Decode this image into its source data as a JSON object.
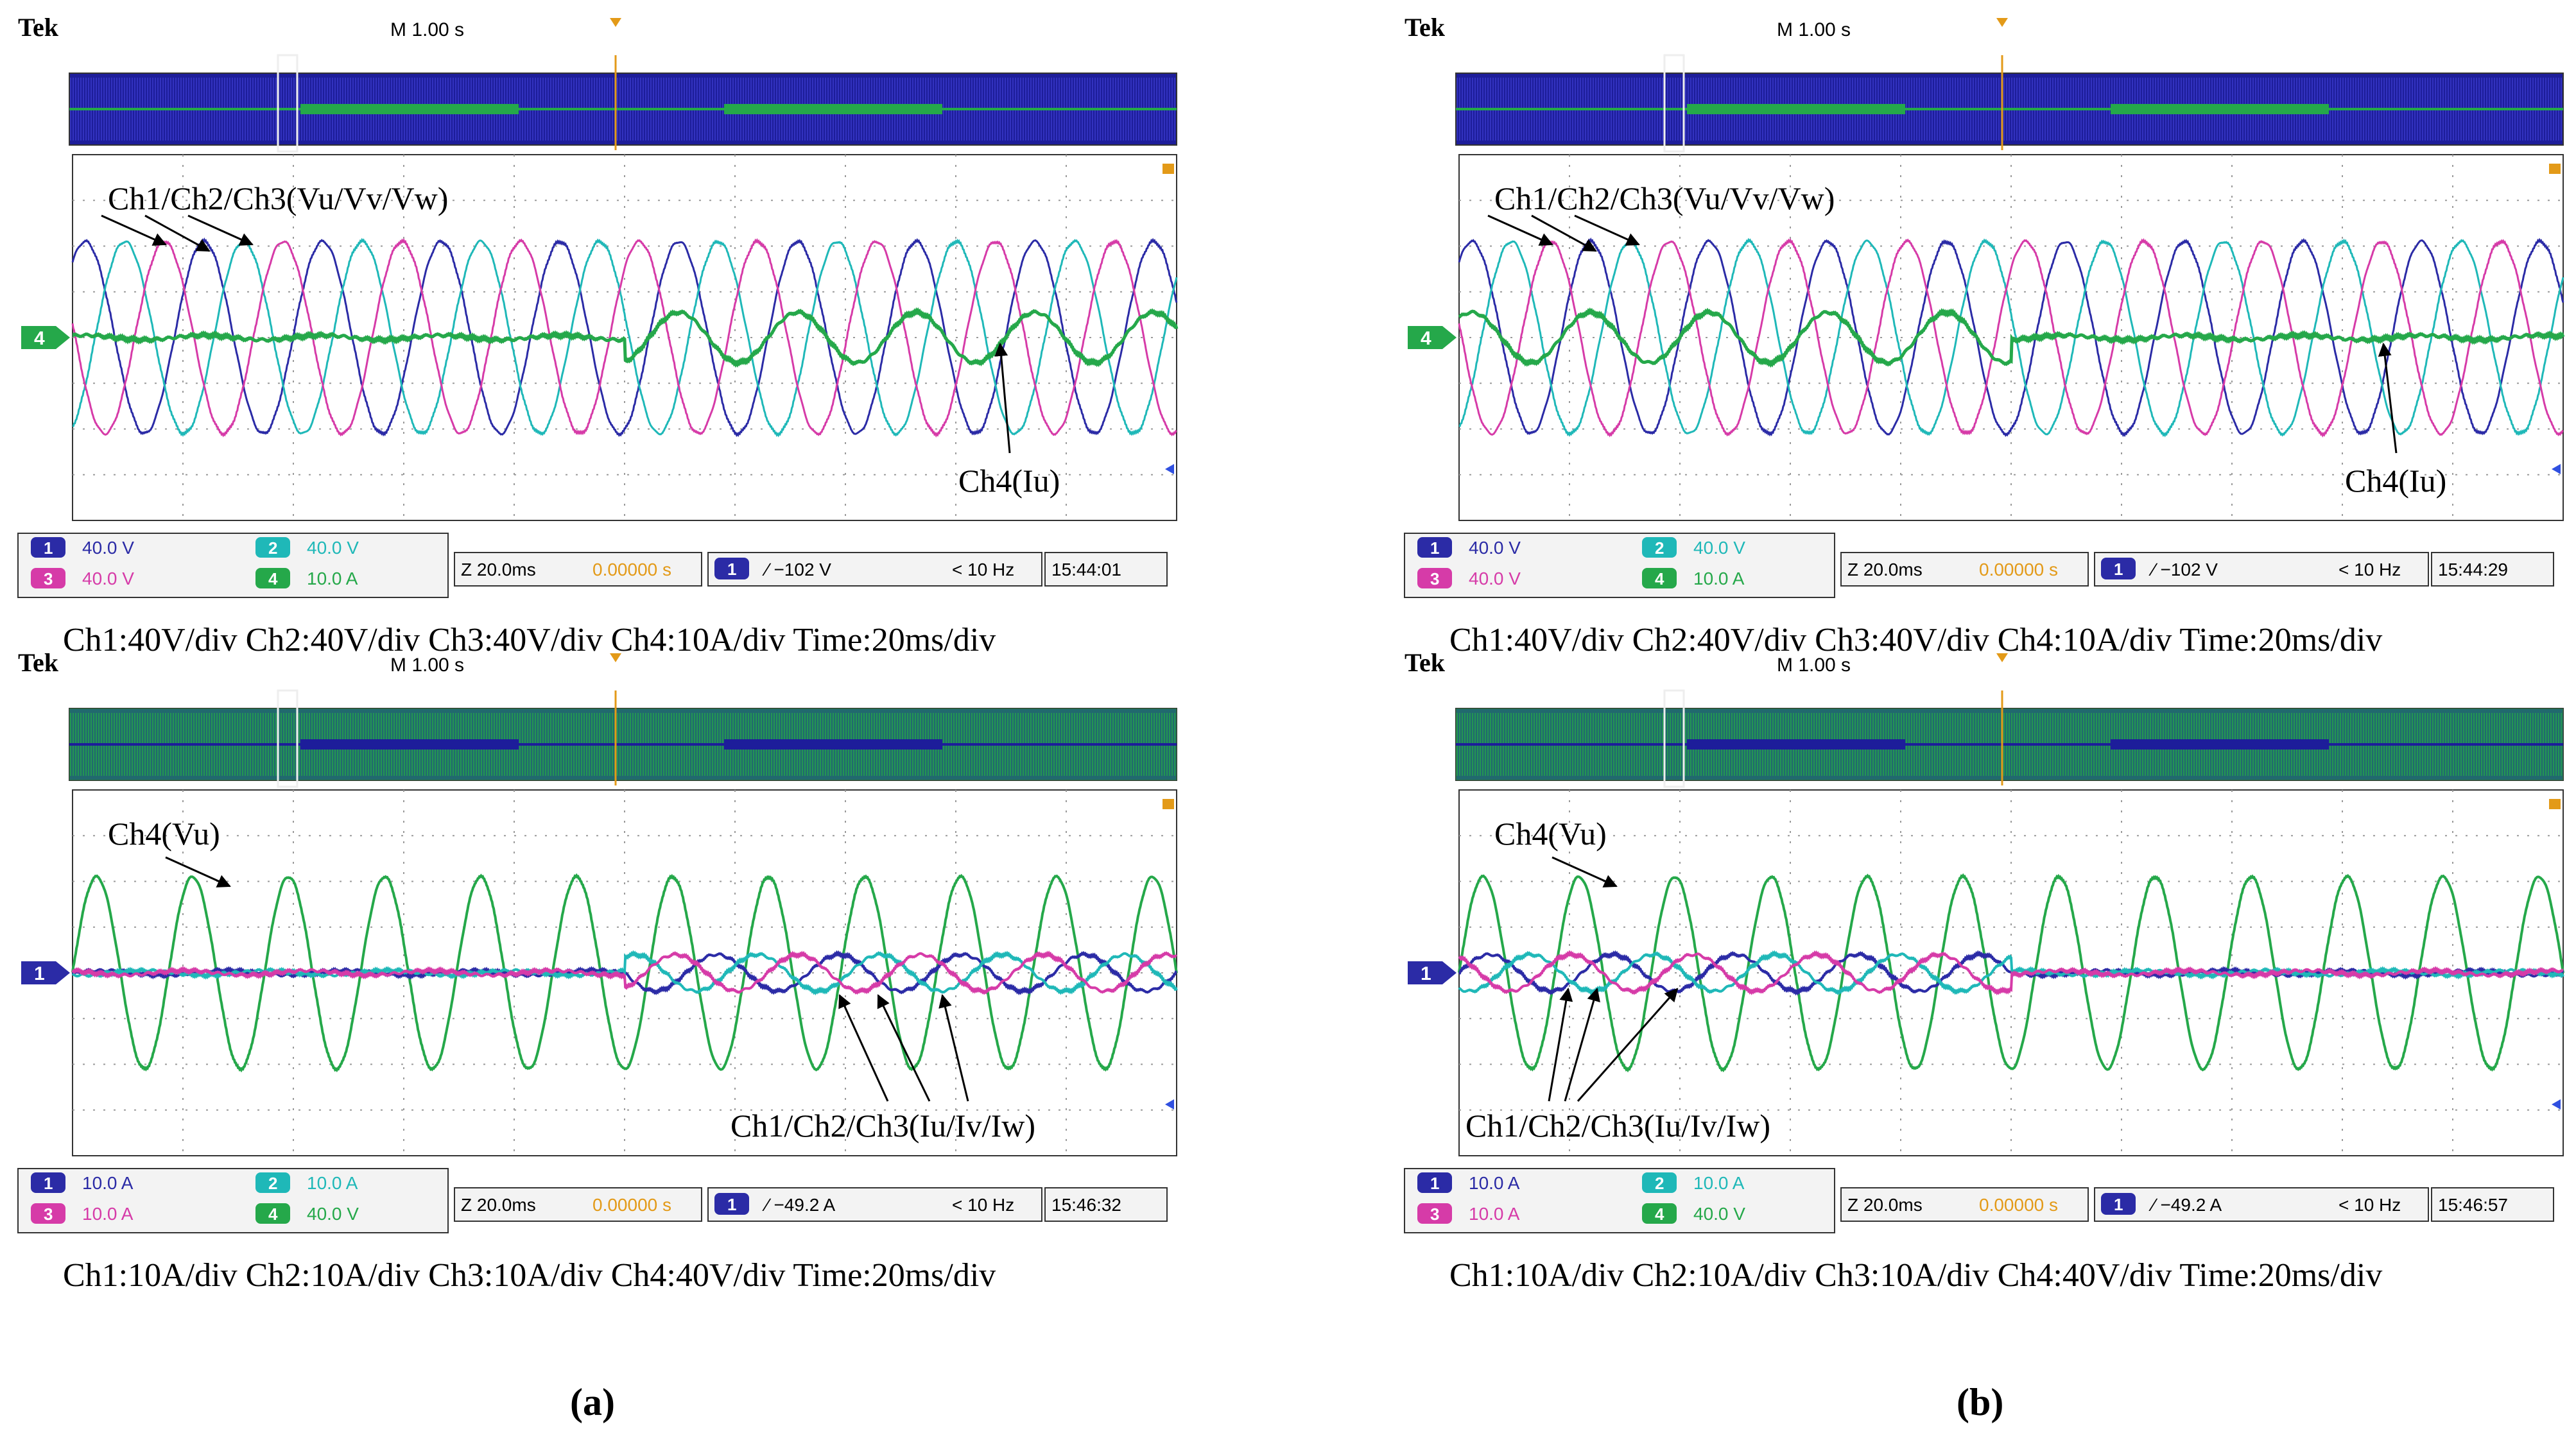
{
  "panels": [
    {
      "label": "(a)",
      "scopes": [
        {
          "brand": "Tek",
          "timebase": "M 1.00 s",
          "zoom": "Z 20.0ms",
          "offset": "0.00000 s",
          "trigger_ch": "1",
          "trigger_level": "∕ −102 V",
          "freq": "< 10 Hz",
          "clock": "15:44:01",
          "marker": "4",
          "channels": [
            {
              "num": "1",
              "scale": "40.0 V"
            },
            {
              "num": "2",
              "scale": "40.0 V"
            },
            {
              "num": "3",
              "scale": "40.0 V"
            },
            {
              "num": "4",
              "scale": "10.0 A"
            }
          ],
          "annotation_top": "Ch1/Ch2/Ch3(Vu/Vv/Vw)",
          "annotation_bottom": "Ch4(Iu)",
          "caption": "Ch1:40V/div  Ch2:40V/div  Ch3:40V/div  Ch4:10A/div  Time:20ms/div"
        },
        {
          "brand": "Tek",
          "timebase": "M 1.00 s",
          "zoom": "Z 20.0ms",
          "offset": "0.00000 s",
          "trigger_ch": "1",
          "trigger_level": "∕ −49.2 A",
          "freq": "< 10 Hz",
          "clock": "15:46:32",
          "marker": "1",
          "channels": [
            {
              "num": "1",
              "scale": "10.0 A"
            },
            {
              "num": "2",
              "scale": "10.0 A"
            },
            {
              "num": "3",
              "scale": "10.0 A"
            },
            {
              "num": "4",
              "scale": "40.0 V"
            }
          ],
          "annotation_top": "Ch4(Vu)",
          "annotation_bottom": "Ch1/Ch2/Ch3(Iu/Iv/Iw)",
          "caption": "Ch1:10A/div  Ch2:10A/div  Ch3:10A/div  Ch4:40V/div  Time:20ms/div"
        }
      ]
    },
    {
      "label": "(b)",
      "scopes": [
        {
          "brand": "Tek",
          "timebase": "M 1.00 s",
          "zoom": "Z 20.0ms",
          "offset": "0.00000 s",
          "trigger_ch": "1",
          "trigger_level": "∕ −102 V",
          "freq": "< 10 Hz",
          "clock": "15:44:29",
          "marker": "4",
          "channels": [
            {
              "num": "1",
              "scale": "40.0 V"
            },
            {
              "num": "2",
              "scale": "40.0 V"
            },
            {
              "num": "3",
              "scale": "40.0 V"
            },
            {
              "num": "4",
              "scale": "10.0 A"
            }
          ],
          "annotation_top": "Ch1/Ch2/Ch3(Vu/Vv/Vw)",
          "annotation_bottom": "Ch4(Iu)",
          "caption": "Ch1:40V/div  Ch2:40V/div  Ch3:40V/div  Ch4:10A/div  Time:20ms/div"
        },
        {
          "brand": "Tek",
          "timebase": "M 1.00 s",
          "zoom": "Z 20.0ms",
          "offset": "0.00000 s",
          "trigger_ch": "1",
          "trigger_level": "∕ −49.2 A",
          "freq": "< 10 Hz",
          "clock": "15:46:57",
          "marker": "1",
          "channels": [
            {
              "num": "1",
              "scale": "10.0 A"
            },
            {
              "num": "2",
              "scale": "10.0 A"
            },
            {
              "num": "3",
              "scale": "10.0 A"
            },
            {
              "num": "4",
              "scale": "40.0 V"
            }
          ],
          "annotation_top": "Ch4(Vu)",
          "annotation_bottom": "Ch1/Ch2/Ch3(Iu/Iv/Iw)",
          "caption": "Ch1:10A/div  Ch2:10A/div  Ch3:10A/div  Ch4:40V/div  Time:20ms/div"
        }
      ]
    }
  ],
  "colors": {
    "ch1": "#2b2ba6",
    "ch2": "#1fb8b8",
    "ch3": "#d63ba8",
    "ch4": "#25a84a",
    "grid": "#9a9a9a",
    "frame": "#333333",
    "offset_text": "#e39a18"
  },
  "chart_data": [
    {
      "type": "line",
      "title": "",
      "xlabel": "",
      "ylabel": "",
      "x_units": "div (20 ms/div)",
      "xlim": [
        0,
        10
      ],
      "ylim": [
        -4,
        4
      ],
      "grid": true,
      "series": [
        {
          "name": "Ch1/Ch2/Ch3(Vu/Vv/Vw)",
          "kind": "three-phase sine",
          "amplitude_div": 2.1,
          "cycles_per_div": 0.93,
          "span": [
            0,
            10
          ]
        },
        {
          "name": "Ch4(Iu)",
          "offset_div": 0,
          "segments": [
            {
              "span": [
                0,
                5
              ],
              "amplitude_div": 0.05
            },
            {
              "span": [
                5,
                10
              ],
              "amplitude_div": 0.55
            }
          ]
        }
      ]
    },
    {
      "type": "line",
      "title": "",
      "xlabel": "",
      "ylabel": "",
      "x_units": "div (20 ms/div)",
      "xlim": [
        0,
        10
      ],
      "ylim": [
        -4,
        4
      ],
      "grid": true,
      "series": [
        {
          "name": "Ch4(Vu)",
          "amplitude_div": 2.1,
          "cycles_per_div": 1.15,
          "span": [
            0,
            10
          ]
        },
        {
          "name": "Ch1/Ch2/Ch3(Iu/Iv/Iw)",
          "kind": "three-phase sine",
          "segments": [
            {
              "span": [
                0,
                5
              ],
              "amplitude_div": 0.05
            },
            {
              "span": [
                5,
                10
              ],
              "amplitude_div": 0.4
            }
          ]
        }
      ]
    },
    {
      "type": "line",
      "title": "",
      "xlabel": "",
      "ylabel": "",
      "x_units": "div (20 ms/div)",
      "xlim": [
        0,
        10
      ],
      "ylim": [
        -4,
        4
      ],
      "grid": true,
      "series": [
        {
          "name": "Ch1/Ch2/Ch3(Vu/Vv/Vw)",
          "kind": "three-phase sine",
          "amplitude_div": 2.1,
          "cycles_per_div": 0.93,
          "span": [
            0,
            10
          ]
        },
        {
          "name": "Ch4(Iu)",
          "offset_div": 0,
          "segments": [
            {
              "span": [
                0,
                5
              ],
              "amplitude_div": 0.55
            },
            {
              "span": [
                5,
                10
              ],
              "amplitude_div": 0.05
            }
          ]
        }
      ]
    },
    {
      "type": "line",
      "title": "",
      "xlabel": "",
      "ylabel": "",
      "x_units": "div (20 ms/div)",
      "xlim": [
        0,
        10
      ],
      "ylim": [
        -4,
        4
      ],
      "grid": true,
      "series": [
        {
          "name": "Ch4(Vu)",
          "amplitude_div": 2.1,
          "cycles_per_div": 1.15,
          "span": [
            0,
            10
          ]
        },
        {
          "name": "Ch1/Ch2/Ch3(Iu/Iv/Iw)",
          "kind": "three-phase sine",
          "segments": [
            {
              "span": [
                0,
                5
              ],
              "amplitude_div": 0.4
            },
            {
              "span": [
                5,
                10
              ],
              "amplitude_div": 0.05
            }
          ]
        }
      ]
    }
  ]
}
